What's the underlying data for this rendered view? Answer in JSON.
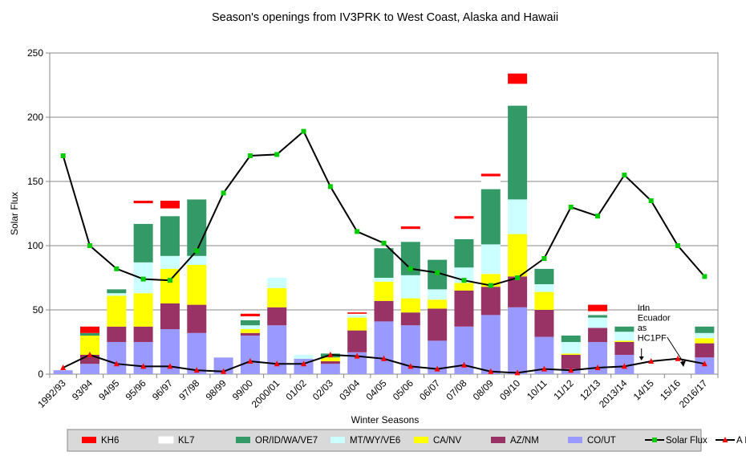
{
  "chart_data": {
    "type": "bar",
    "stacked": true,
    "title": "Season's openings from IV3PRK to West Coast, Alaska and Hawaii",
    "xlabel": "Winter Seasons",
    "ylabel": "Solar Flux",
    "ylim": [
      0,
      250
    ],
    "yticks": [
      0,
      50,
      100,
      150,
      200,
      250
    ],
    "grid": "horizontal",
    "legend_position": "bottom",
    "categories": [
      "1992/93",
      "93/94",
      "94/95",
      "95/96",
      "96/97",
      "97/98",
      "98/99",
      "99/00",
      "2000/01",
      "01/02",
      "02/03",
      "03/04",
      "04/05",
      "05/06",
      "06/07",
      "07/08",
      "08/09",
      "09/10",
      "10/11",
      "11/12",
      "12/13",
      "2013/14",
      "14/15",
      "15/16",
      "2016/17"
    ],
    "series": [
      {
        "name": "CO/UT",
        "color": "#9999ff",
        "values": [
          3,
          8,
          25,
          25,
          35,
          32,
          13,
          30,
          38,
          12,
          8,
          17,
          41,
          38,
          26,
          37,
          46,
          52,
          29,
          4,
          25,
          15,
          0,
          0,
          13
        ]
      },
      {
        "name": "AZ/NM",
        "color": "#993366",
        "values": [
          0,
          7,
          12,
          12,
          20,
          22,
          0,
          2,
          14,
          0,
          2,
          17,
          16,
          10,
          25,
          28,
          22,
          24,
          21,
          11,
          11,
          10,
          0,
          0,
          11
        ]
      },
      {
        "name": "CA/NV",
        "color": "#ffff00",
        "values": [
          0,
          15,
          24,
          26,
          27,
          31,
          0,
          3,
          15,
          0,
          3,
          10,
          15,
          11,
          7,
          6,
          10,
          33,
          14,
          1,
          0,
          1,
          0,
          0,
          4
        ]
      },
      {
        "name": "MT/WY/VE6",
        "color": "#ccffff",
        "values": [
          0,
          0,
          2,
          24,
          10,
          7,
          0,
          3,
          8,
          3,
          0,
          2,
          3,
          18,
          8,
          12,
          23,
          27,
          6,
          9,
          8,
          7,
          0,
          0,
          4
        ]
      },
      {
        "name": "OR/ID/WA/VE7",
        "color": "#339966",
        "values": [
          0,
          2,
          3,
          30,
          31,
          44,
          0,
          4,
          0,
          0,
          3,
          0,
          23,
          26,
          23,
          22,
          43,
          73,
          12,
          5,
          2,
          4,
          0,
          0,
          5
        ]
      },
      {
        "name": "KL7",
        "color": "#ffffff",
        "values": [
          0,
          0,
          0,
          16,
          6,
          13,
          6,
          3,
          0,
          0,
          0,
          1,
          0,
          10,
          0,
          16,
          10,
          17,
          3,
          0,
          3,
          0,
          0,
          0,
          0
        ]
      },
      {
        "name": "KH6",
        "color": "#ff0000",
        "values": [
          0,
          5,
          0,
          2,
          6,
          0,
          0,
          2,
          0,
          0,
          0,
          1,
          0,
          2,
          0,
          2,
          2,
          8,
          0,
          0,
          5,
          0,
          0,
          0,
          0
        ]
      }
    ],
    "lines": [
      {
        "name": "Solar Flux",
        "color": "#000000",
        "marker_color": "#00cc00",
        "values": [
          170,
          100,
          82,
          74,
          73,
          96,
          141,
          170,
          171,
          189,
          146,
          111,
          102,
          82,
          79,
          73,
          69,
          75,
          90,
          130,
          123,
          155,
          135,
          100,
          76
        ]
      },
      {
        "name": "A Index",
        "color": "#000000",
        "marker_color": "#ff0000",
        "values": [
          5,
          15,
          8,
          6,
          6,
          3,
          2,
          10,
          8,
          8,
          15,
          14,
          12,
          6,
          4,
          7,
          2,
          1,
          4,
          3,
          5,
          6,
          10,
          12,
          8
        ]
      }
    ],
    "annotations": [
      {
        "text": "In Ecuador as HC1PF",
        "category": "14/15"
      }
    ]
  }
}
